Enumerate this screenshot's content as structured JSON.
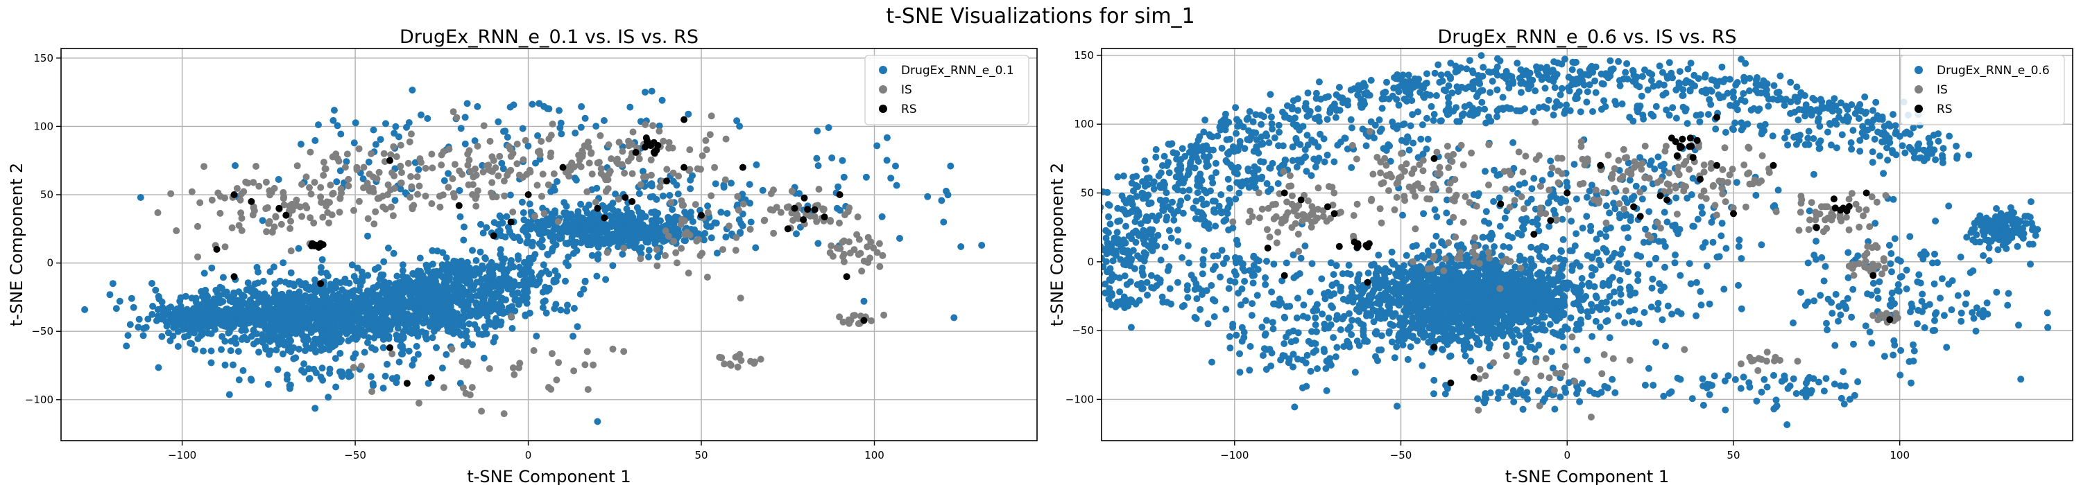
{
  "figure": {
    "title": "t-SNE Visualizations for sim_1"
  },
  "colors": {
    "gen": "#1f77b4",
    "is": "#808080",
    "rs": "#000000",
    "grid": "#b0b0b0"
  },
  "chart_data": [
    {
      "type": "scatter",
      "title": "DrugEx_RNN_e_0.1 vs. IS vs. RS",
      "xlabel": "t-SNE Component 1",
      "ylabel": "t-SNE Component 2",
      "xlim": [
        -135,
        147
      ],
      "ylim": [
        -130,
        157
      ],
      "xticks": [
        -100,
        -50,
        0,
        50,
        100
      ],
      "yticks": [
        -100,
        -50,
        0,
        50,
        100,
        150
      ],
      "grid": true,
      "legend_position": "top-right",
      "series": [
        {
          "name": "DrugEx_RNN_e_0.1",
          "color": "#1f77b4",
          "clusters": [
            {
              "cx": -58,
              "cy": -38,
              "rx": 40,
              "ry": 22,
              "n": 1400
            },
            {
              "cx": -95,
              "cy": -40,
              "rx": 12,
              "ry": 8,
              "n": 160
            },
            {
              "cx": -20,
              "cy": -25,
              "rx": 22,
              "ry": 16,
              "n": 350
            },
            {
              "cx": 22,
              "cy": 25,
              "rx": 28,
              "ry": 14,
              "n": 500
            },
            {
              "cx": -12,
              "cy": -8,
              "rx": 28,
              "ry": 14,
              "n": 200
            },
            {
              "cx": 40,
              "cy": 50,
              "rx": 25,
              "ry": 22,
              "n": 60
            },
            {
              "cx": 0,
              "cy": 100,
              "rx": 60,
              "ry": 30,
              "n": 70
            },
            {
              "cx": 90,
              "cy": 45,
              "rx": 30,
              "ry": 40,
              "n": 40
            },
            {
              "cx": -60,
              "cy": -80,
              "rx": 30,
              "ry": 12,
              "n": 60
            },
            {
              "cx": -40,
              "cy": 60,
              "rx": 35,
              "ry": 45,
              "n": 50
            }
          ],
          "points": [
            [
              -112,
              48
            ],
            [
              -120,
              -15
            ],
            [
              -115,
              -45
            ],
            [
              -118,
              -28
            ],
            [
              120,
              30
            ],
            [
              125,
              12
            ],
            [
              131,
              13
            ],
            [
              122,
              71
            ],
            [
              123,
              -40
            ],
            [
              97,
              -28
            ],
            [
              20,
              -116
            ]
          ]
        },
        {
          "name": "IS",
          "color": "#808080",
          "clusters": [
            {
              "cx": -75,
              "cy": 40,
              "rx": 22,
              "ry": 25,
              "n": 90
            },
            {
              "cx": -45,
              "cy": 60,
              "rx": 25,
              "ry": 25,
              "n": 80
            },
            {
              "cx": -10,
              "cy": 70,
              "rx": 30,
              "ry": 30,
              "n": 90
            },
            {
              "cx": 30,
              "cy": 80,
              "rx": 30,
              "ry": 25,
              "n": 90
            },
            {
              "cx": 80,
              "cy": 40,
              "rx": 18,
              "ry": 15,
              "n": 45
            },
            {
              "cx": 95,
              "cy": 10,
              "rx": 10,
              "ry": 12,
              "n": 30
            },
            {
              "cx": 95,
              "cy": -40,
              "rx": 6,
              "ry": 5,
              "n": 15
            },
            {
              "cx": 60,
              "cy": -72,
              "rx": 8,
              "ry": 5,
              "n": 14
            },
            {
              "cx": -10,
              "cy": -80,
              "rx": 40,
              "ry": 20,
              "n": 35
            },
            {
              "cx": 50,
              "cy": 20,
              "rx": 20,
              "ry": 30,
              "n": 40
            }
          ],
          "points": []
        },
        {
          "name": "RS",
          "color": "#000000",
          "clusters": [
            {
              "cx": 35,
              "cy": 85,
              "rx": 5,
              "ry": 8,
              "n": 12
            },
            {
              "cx": -62,
              "cy": 12,
              "rx": 4,
              "ry": 3,
              "n": 8
            },
            {
              "cx": 82,
              "cy": 38,
              "rx": 5,
              "ry": 8,
              "n": 6
            }
          ],
          "points": [
            [
              -85,
              50
            ],
            [
              -80,
              45
            ],
            [
              -72,
              40
            ],
            [
              -90,
              10
            ],
            [
              -60,
              -15
            ],
            [
              -40,
              75
            ],
            [
              -20,
              42
            ],
            [
              -40,
              -62
            ],
            [
              0,
              50
            ],
            [
              10,
              70
            ],
            [
              20,
              40
            ],
            [
              22,
              33
            ],
            [
              28,
              48
            ],
            [
              30,
              45
            ],
            [
              40,
              60
            ],
            [
              45,
              70
            ],
            [
              45,
              105
            ],
            [
              50,
              35
            ],
            [
              62,
              70
            ],
            [
              90,
              50
            ],
            [
              92,
              -10
            ],
            [
              97,
              -42
            ],
            [
              -85,
              -10
            ],
            [
              -35,
              -88
            ],
            [
              -28,
              -84
            ],
            [
              -10,
              20
            ],
            [
              -5,
              30
            ],
            [
              -70,
              35
            ],
            [
              75,
              25
            ]
          ]
        }
      ]
    },
    {
      "type": "scatter",
      "title": "DrugEx_RNN_e_0.6 vs. IS vs. RS",
      "xlabel": "t-SNE Component 1",
      "ylabel": "t-SNE Component 2",
      "xlim": [
        -140,
        152
      ],
      "ylim": [
        -130,
        155
      ],
      "xticks": [
        -100,
        -50,
        0,
        50,
        100
      ],
      "yticks": [
        -100,
        -50,
        0,
        50,
        100,
        150
      ],
      "grid": true,
      "legend_position": "top-right",
      "series": [
        {
          "name": "DrugEx_RNN_e_0.6",
          "color": "#1f77b4",
          "clusters": [
            {
              "cx": -30,
              "cy": -28,
              "rx": 30,
              "ry": 28,
              "n": 1500
            },
            {
              "cx": -10,
              "cy": -20,
              "rx": 45,
              "ry": 35,
              "n": 300
            },
            {
              "cx": 130,
              "cy": 25,
              "rx": 8,
              "ry": 12,
              "n": 150
            },
            {
              "cx": -80,
              "cy": -55,
              "rx": 25,
              "ry": 30,
              "n": 120
            },
            {
              "cx": 100,
              "cy": -20,
              "rx": 30,
              "ry": 50,
              "n": 150
            },
            {
              "cx": 10,
              "cy": 40,
              "rx": 50,
              "ry": 40,
              "n": 250
            },
            {
              "cx": -100,
              "cy": -10,
              "rx": 25,
              "ry": 30,
              "n": 100
            },
            {
              "cx": 60,
              "cy": -90,
              "rx": 30,
              "ry": 15,
              "n": 60
            },
            {
              "cx": -10,
              "cy": -95,
              "rx": 30,
              "ry": 10,
              "n": 60
            }
          ],
          "arcs": [
            {
              "cx": 0,
              "cy": 0,
              "a": 135,
              "b": 135,
              "t0": 0.18,
              "t1": 1.08,
              "width": 12,
              "n": 950
            },
            {
              "cx": 0,
              "cy": 0,
              "a": 110,
              "b": 112,
              "t0": 0.25,
              "t1": 0.95,
              "width": 6,
              "n": 200
            },
            {
              "cx": 0,
              "cy": 0,
              "a": 130,
              "b": 90,
              "t0": 0.6,
              "t1": 1.0,
              "width": 10,
              "n": 120
            }
          ],
          "points": [
            [
              -130,
              -5
            ],
            [
              -120,
              40
            ],
            [
              -100,
              65
            ],
            [
              -125,
              20
            ],
            [
              -125,
              -10
            ],
            [
              85,
              -100
            ],
            [
              140,
              25
            ],
            [
              125,
              -40
            ],
            [
              110,
              -50
            ]
          ]
        },
        {
          "name": "IS",
          "color": "#808080",
          "clusters": [
            {
              "cx": -80,
              "cy": 35,
              "rx": 15,
              "ry": 25,
              "n": 70
            },
            {
              "cx": -45,
              "cy": 60,
              "rx": 20,
              "ry": 25,
              "n": 70
            },
            {
              "cx": 10,
              "cy": 60,
              "rx": 30,
              "ry": 30,
              "n": 80
            },
            {
              "cx": 45,
              "cy": 60,
              "rx": 20,
              "ry": 25,
              "n": 60
            },
            {
              "cx": 80,
              "cy": 35,
              "rx": 12,
              "ry": 15,
              "n": 40
            },
            {
              "cx": 90,
              "cy": 0,
              "rx": 6,
              "ry": 15,
              "n": 25
            },
            {
              "cx": 95,
              "cy": -40,
              "rx": 5,
              "ry": 4,
              "n": 12
            },
            {
              "cx": 60,
              "cy": -72,
              "rx": 8,
              "ry": 5,
              "n": 14
            },
            {
              "cx": -10,
              "cy": -80,
              "rx": 30,
              "ry": 20,
              "n": 25
            },
            {
              "cx": -30,
              "cy": 10,
              "rx": 20,
              "ry": 20,
              "n": 30
            }
          ],
          "points": []
        },
        {
          "name": "RS",
          "color": "#000000",
          "clusters": [
            {
              "cx": 35,
              "cy": 85,
              "rx": 5,
              "ry": 8,
              "n": 12
            },
            {
              "cx": -62,
              "cy": 12,
              "rx": 4,
              "ry": 3,
              "n": 8
            },
            {
              "cx": 82,
              "cy": 38,
              "rx": 5,
              "ry": 8,
              "n": 6
            }
          ],
          "points": [
            [
              -85,
              50
            ],
            [
              -80,
              45
            ],
            [
              -72,
              40
            ],
            [
              -90,
              10
            ],
            [
              -60,
              -15
            ],
            [
              -40,
              75
            ],
            [
              -20,
              42
            ],
            [
              -40,
              -62
            ],
            [
              0,
              50
            ],
            [
              10,
              70
            ],
            [
              20,
              40
            ],
            [
              22,
              33
            ],
            [
              28,
              48
            ],
            [
              30,
              45
            ],
            [
              40,
              60
            ],
            [
              45,
              70
            ],
            [
              45,
              105
            ],
            [
              50,
              35
            ],
            [
              62,
              70
            ],
            [
              90,
              50
            ],
            [
              92,
              -10
            ],
            [
              97,
              -42
            ],
            [
              -85,
              -10
            ],
            [
              -35,
              -88
            ],
            [
              -28,
              -84
            ],
            [
              -10,
              20
            ],
            [
              -5,
              30
            ],
            [
              -70,
              35
            ],
            [
              75,
              25
            ]
          ]
        }
      ]
    }
  ]
}
